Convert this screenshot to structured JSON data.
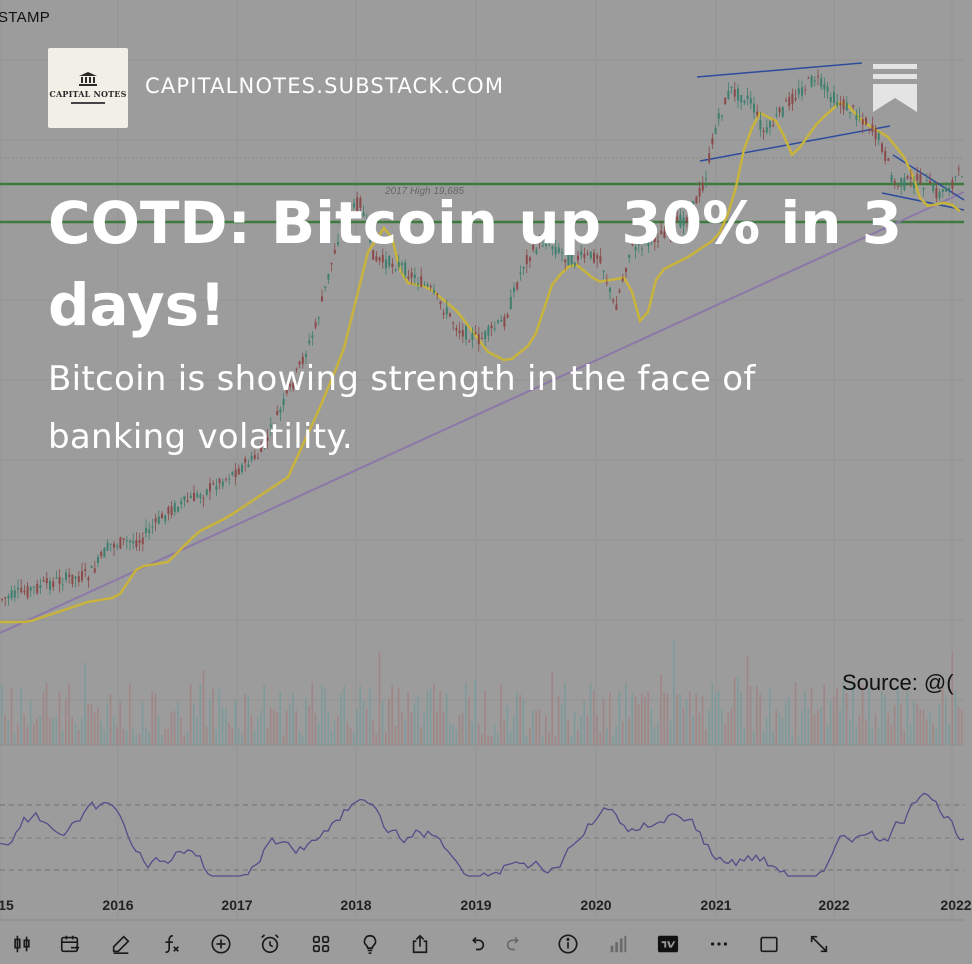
{
  "background_chart": {
    "exchange_label": "STAMP",
    "watermark_label": "2017 High 19,685",
    "source_label": "Source: @(",
    "year_labels": [
      "15",
      "2016",
      "2017",
      "2018",
      "2019",
      "2020",
      "2021",
      "2022",
      "2022"
    ]
  },
  "publication": {
    "logo_text": "CAPITAL NOTES",
    "domain": "CAPITALNOTES.SUBSTACK.COM"
  },
  "post": {
    "title": "COTD: Bitcoin up 30% in 3 days!",
    "subtitle": "Bitcoin is showing strength in the face of banking volatility."
  },
  "toolbar": {
    "icons": [
      "candles-icon",
      "calendar-icon",
      "pen-icon",
      "fx-icon",
      "plus-circle-icon",
      "alarm-icon",
      "grid-icon",
      "bulb-icon",
      "share-icon",
      "undo-icon",
      "redo-icon",
      "info-icon",
      "bar-chart-icon",
      "tradingview-icon",
      "more-icon",
      "square-icon",
      "expand-icon"
    ]
  },
  "colors": {
    "overlay_gray": "#9c9c9c",
    "ma_line": "#c8b43c",
    "trend_line": "#8c78a8",
    "support_line": "#3e7a3e",
    "channel_line": "#2e4c9c",
    "rsi_line": "#5a4a8a",
    "text_white": "#ffffff"
  }
}
